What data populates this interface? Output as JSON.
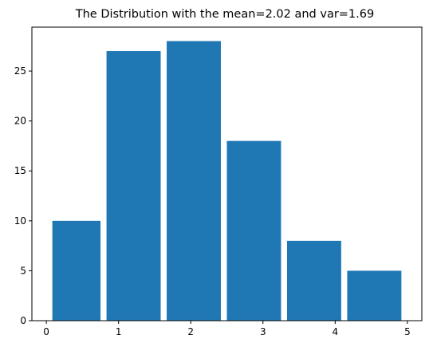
{
  "chart_data": {
    "type": "bar",
    "title": "The Distribution with the mean=2.02 and var=1.69",
    "xlabel": "",
    "ylabel": "",
    "bins": [
      {
        "start": 0.0833,
        "end": 0.75,
        "value": 10
      },
      {
        "start": 0.8333,
        "end": 1.5833,
        "value": 27
      },
      {
        "start": 1.6667,
        "end": 2.4167,
        "value": 28
      },
      {
        "start": 2.5,
        "end": 3.25,
        "value": 18
      },
      {
        "start": 3.3333,
        "end": 4.0833,
        "value": 8
      },
      {
        "start": 4.1667,
        "end": 4.9167,
        "value": 5
      }
    ],
    "xlim": [
      -0.2,
      5.2
    ],
    "ylim": [
      0,
      29.4
    ],
    "xticks": [
      0,
      1,
      2,
      3,
      4,
      5
    ],
    "yticks": [
      0,
      5,
      10,
      15,
      20,
      25
    ],
    "bar_color": "#1f77b4",
    "grid": false,
    "legend": "none"
  }
}
